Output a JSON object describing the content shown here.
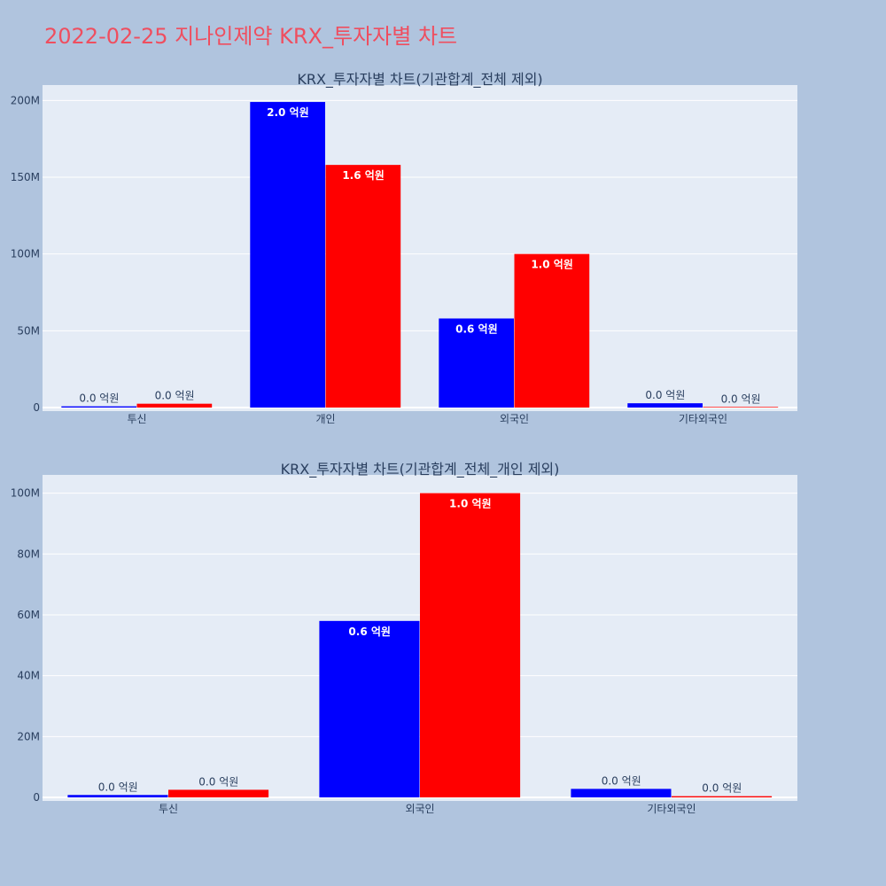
{
  "page_title": "2022-02-25 지나인제약 KRX_투자자별 차트",
  "colors": {
    "background": "#b0c4de",
    "plot_bg": "#e5ecf6",
    "buy": "#0000ff",
    "sell": "#ff0000",
    "title": "#ef4e5f",
    "text": "#2a3f5f"
  },
  "chart_data": [
    {
      "type": "bar",
      "title": "KRX_투자자별 차트(기관합계_전체 제외)",
      "categories": [
        "투신",
        "개인",
        "외국인",
        "기타외국인"
      ],
      "ylim": [
        0,
        210000000
      ],
      "yticks": [
        0,
        50000000,
        100000000,
        150000000,
        200000000
      ],
      "ytick_labels": [
        "0",
        "50M",
        "100M",
        "150M",
        "200M"
      ],
      "grid": true,
      "series": [
        {
          "color": "#0000ff",
          "values": [
            800000,
            199000000,
            58000000,
            2800000
          ],
          "labels": [
            "0.0 억원",
            "2.0 억원",
            "0.6 억원",
            "0.0 억원"
          ]
        },
        {
          "color": "#ff0000",
          "values": [
            2500000,
            158000000,
            100000000,
            400000
          ],
          "labels": [
            "0.0 억원",
            "1.6 억원",
            "1.0 억원",
            "0.0 억원"
          ]
        }
      ]
    },
    {
      "type": "bar",
      "title": "KRX_투자자별 차트(기관합계_전체_개인 제외)",
      "categories": [
        "투신",
        "외국인",
        "기타외국인"
      ],
      "ylim": [
        0,
        106000000
      ],
      "yticks": [
        0,
        20000000,
        40000000,
        60000000,
        80000000,
        100000000
      ],
      "ytick_labels": [
        "0",
        "20M",
        "40M",
        "60M",
        "80M",
        "100M"
      ],
      "grid": true,
      "series": [
        {
          "color": "#0000ff",
          "values": [
            800000,
            58000000,
            2800000
          ],
          "labels": [
            "0.0 억원",
            "0.6 억원",
            "0.0 억원"
          ]
        },
        {
          "color": "#ff0000",
          "values": [
            2500000,
            100000000,
            400000
          ],
          "labels": [
            "0.0 억원",
            "1.0 억원",
            "0.0 억원"
          ]
        }
      ]
    }
  ]
}
